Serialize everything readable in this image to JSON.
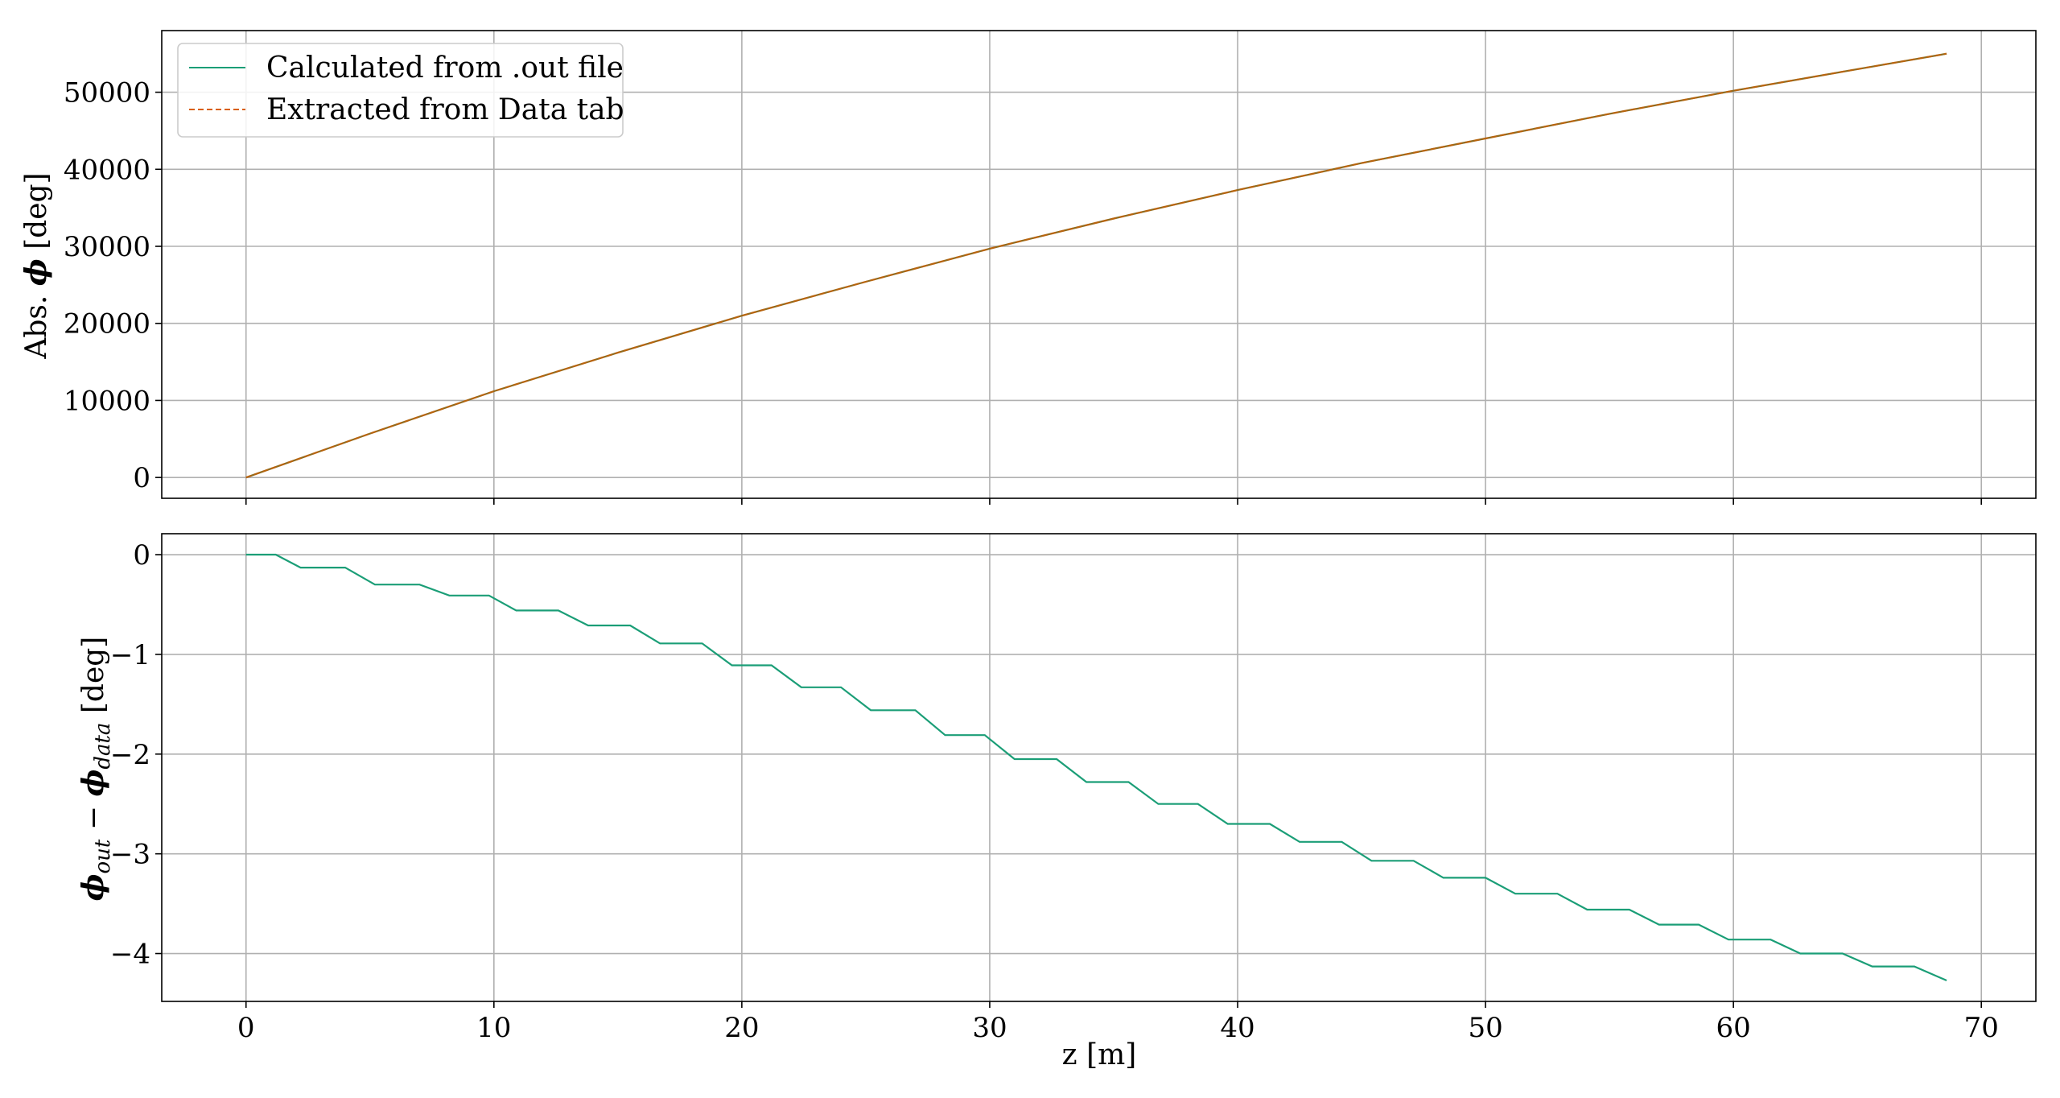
{
  "colors": {
    "calc": "#1b9e77",
    "data": "#d95f02",
    "overlap": "#8f6a1e",
    "grid": "#b0b0b0"
  },
  "chart_data": [
    {
      "type": "line",
      "title": "",
      "xlabel": "",
      "ylabel": "Abs. ϕ [deg]",
      "ylabel_prefix": "Abs. ",
      "ylabel_symbol": "ϕ",
      "ylabel_suffix": " [deg]",
      "xlim": [
        -3.4,
        72.2
      ],
      "ylim": [
        -2700,
        58000
      ],
      "xticks": [
        0,
        10,
        20,
        30,
        40,
        50,
        60,
        70
      ],
      "yticks": [
        0,
        10000,
        20000,
        30000,
        40000,
        50000
      ],
      "ytick_labels": [
        "0",
        "10000",
        "20000",
        "30000",
        "40000",
        "50000"
      ],
      "grid": true,
      "legend": {
        "placement": "upper-left",
        "entries": [
          "Calculated from .out file",
          "Extracted from Data tab"
        ]
      },
      "series": [
        {
          "name": "Calculated from .out file",
          "style": "solid",
          "x": [
            0,
            5,
            10,
            15,
            20,
            25,
            30,
            35,
            40,
            45,
            50,
            55,
            60,
            65,
            68.6
          ],
          "y": [
            0,
            5700,
            11200,
            16200,
            21000,
            25400,
            29700,
            33600,
            37300,
            40800,
            44000,
            47200,
            50200,
            53000,
            55000
          ]
        },
        {
          "name": "Extracted from Data tab",
          "style": "dashed",
          "x": [
            0,
            5,
            10,
            15,
            20,
            25,
            30,
            35,
            40,
            45,
            50,
            55,
            60,
            65,
            68.6
          ],
          "y": [
            0,
            5700,
            11200,
            16200,
            21000,
            25400,
            29700,
            33600,
            37300,
            40800,
            44000,
            47200,
            50200,
            53000,
            55000
          ]
        }
      ]
    },
    {
      "type": "line",
      "title": "",
      "xlabel": "z [m]",
      "ylabel": "ϕout − ϕdata [deg]",
      "ylabel_phi": "ϕ",
      "ylabel_sub1": "out",
      "ylabel_minus": " − ",
      "ylabel_sub2": "data",
      "ylabel_suffix": " [deg]",
      "xlim": [
        -3.4,
        72.2
      ],
      "ylim": [
        -4.48,
        0.21
      ],
      "xticks": [
        0,
        10,
        20,
        30,
        40,
        50,
        60,
        70
      ],
      "xtick_labels": [
        "0",
        "10",
        "20",
        "30",
        "40",
        "50",
        "60",
        "70"
      ],
      "yticks": [
        0,
        -1,
        -2,
        -3,
        -4
      ],
      "ytick_labels": [
        "0",
        "−1",
        "−2",
        "−3",
        "−4"
      ],
      "grid": true,
      "series": [
        {
          "name": "",
          "style": "step",
          "x": [
            0,
            1.2,
            2.2,
            4.0,
            5.2,
            7.0,
            8.2,
            9.8,
            10.9,
            12.6,
            13.8,
            15.5,
            16.7,
            18.4,
            19.6,
            21.2,
            22.4,
            24.0,
            25.2,
            27.0,
            28.2,
            29.8,
            31.0,
            32.7,
            33.9,
            35.6,
            36.8,
            38.4,
            39.6,
            41.3,
            42.5,
            44.2,
            45.4,
            47.1,
            48.3,
            50.0,
            51.2,
            52.9,
            54.1,
            55.8,
            57.0,
            58.6,
            59.8,
            61.5,
            62.7,
            64.4,
            65.6,
            67.3,
            68.6
          ],
          "y": [
            0,
            0,
            -0.13,
            -0.13,
            -0.3,
            -0.3,
            -0.41,
            -0.41,
            -0.56,
            -0.56,
            -0.71,
            -0.71,
            -0.89,
            -0.89,
            -1.11,
            -1.11,
            -1.33,
            -1.33,
            -1.56,
            -1.56,
            -1.81,
            -1.81,
            -2.05,
            -2.05,
            -2.28,
            -2.28,
            -2.5,
            -2.5,
            -2.7,
            -2.7,
            -2.88,
            -2.88,
            -3.07,
            -3.07,
            -3.24,
            -3.24,
            -3.4,
            -3.4,
            -3.56,
            -3.56,
            -3.71,
            -3.71,
            -3.86,
            -3.86,
            -4.0,
            -4.0,
            -4.13,
            -4.13,
            -4.27
          ]
        }
      ]
    }
  ]
}
